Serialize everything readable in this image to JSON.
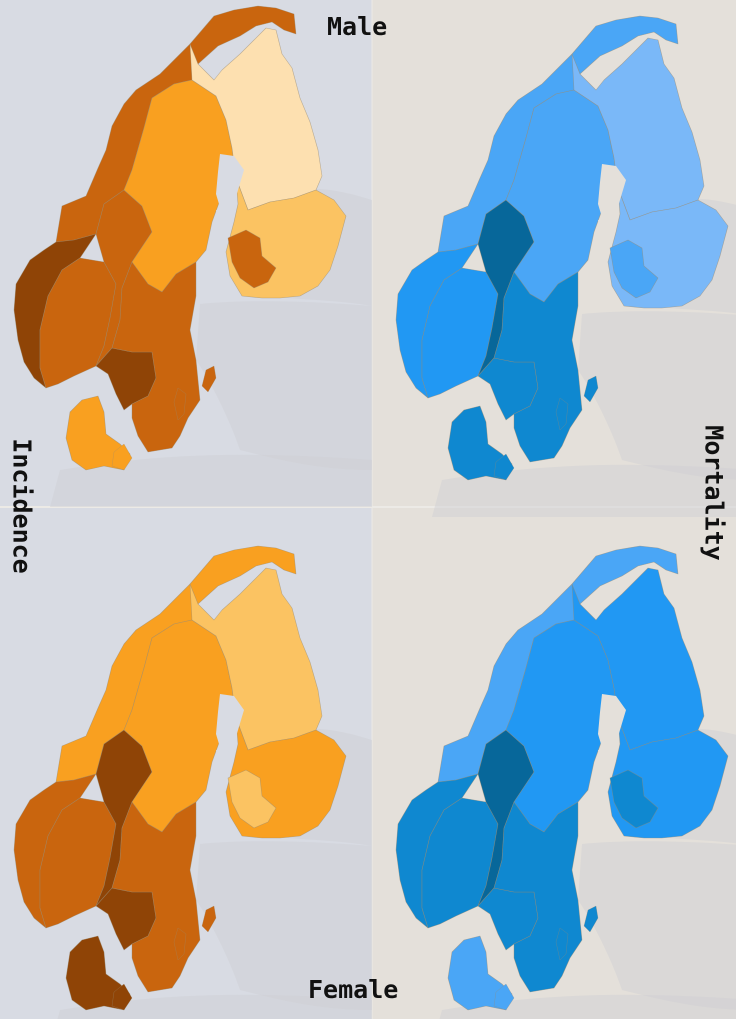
{
  "labels": {
    "top": "Male",
    "bottom": "Female",
    "left": "Incidence",
    "right": "Mortality"
  },
  "colors": {
    "background_left": "#d8dbe3",
    "background_right": "#e4e0da",
    "neighbor_land": "#cfcfd2",
    "incidence_scale": [
      "#fde0b0",
      "#fbc362",
      "#f9a020",
      "#c9650e",
      "#8f4406"
    ],
    "mortality_scale": [
      "#7ab8f8",
      "#4aa6f6",
      "#2198f3",
      "#0f88d0",
      "#07679a"
    ]
  },
  "maps": [
    {
      "name": "Male incidence",
      "measure": "incidence",
      "sex": "male",
      "levels": {
        "norway_north": 3,
        "norway_coast": 4,
        "norway_southeast": 3,
        "norway_south": 3,
        "oslo": 4,
        "sweden_north": 2,
        "sweden_south": 3,
        "denmark": 2,
        "finland_north": 0,
        "finland_south": 1,
        "finland_central": 3
      }
    },
    {
      "name": "Male mortality",
      "measure": "mortality",
      "sex": "male",
      "levels": {
        "norway_north": 1,
        "norway_coast": 2,
        "norway_southeast": 4,
        "norway_south": 2,
        "oslo": 3,
        "sweden_north": 1,
        "sweden_south": 3,
        "denmark": 3,
        "finland_north": 0,
        "finland_south": 0,
        "finland_central": 1
      }
    },
    {
      "name": "Female incidence",
      "measure": "incidence",
      "sex": "female",
      "levels": {
        "norway_north": 2,
        "norway_coast": 3,
        "norway_southeast": 4,
        "norway_south": 3,
        "oslo": 4,
        "sweden_north": 2,
        "sweden_south": 3,
        "denmark": 4,
        "finland_north": 1,
        "finland_south": 2,
        "finland_central": 1
      }
    },
    {
      "name": "Female mortality",
      "measure": "mortality",
      "sex": "female",
      "levels": {
        "norway_north": 1,
        "norway_coast": 3,
        "norway_southeast": 4,
        "norway_south": 3,
        "oslo": 3,
        "sweden_north": 2,
        "sweden_south": 3,
        "denmark": 1,
        "finland_north": 2,
        "finland_south": 2,
        "finland_central": 3
      }
    }
  ]
}
